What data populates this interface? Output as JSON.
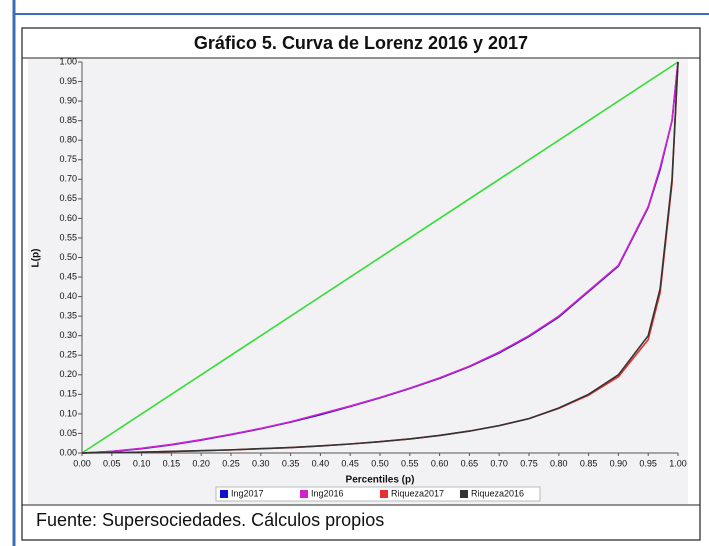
{
  "chart_data": {
    "type": "line",
    "title": "Gráfico 5. Curva de Lorenz 2016 y 2017",
    "xlabel": "Percentiles (p)",
    "ylabel": "L(p)",
    "source": "Fuente: Supersociedades. Cálculos propios",
    "x": [
      0,
      0.05,
      0.1,
      0.15,
      0.2,
      0.25,
      0.3,
      0.35,
      0.4,
      0.45,
      0.5,
      0.55,
      0.6,
      0.65,
      0.7,
      0.75,
      0.8,
      0.85,
      0.9,
      0.95,
      0.97,
      0.99,
      1
    ],
    "series": [
      {
        "name": "Ing2017",
        "color": "#1010d0",
        "values": [
          0,
          0.004,
          0.011,
          0.021,
          0.033,
          0.047,
          0.062,
          0.079,
          0.098,
          0.119,
          0.141,
          0.165,
          0.191,
          0.221,
          0.256,
          0.298,
          0.348,
          0.413,
          0.478,
          0.628,
          0.725,
          0.85,
          1
        ]
      },
      {
        "name": "Ing2016",
        "color": "#d020d0",
        "values": [
          0,
          0.004,
          0.012,
          0.022,
          0.034,
          0.048,
          0.063,
          0.08,
          0.1,
          0.12,
          0.142,
          0.166,
          0.192,
          0.222,
          0.258,
          0.3,
          0.35,
          0.415,
          0.48,
          0.63,
          0.73,
          0.85,
          1
        ]
      },
      {
        "name": "Riqueza2017",
        "color": "#e83030",
        "values": [
          0,
          0.001,
          0.002,
          0.004,
          0.006,
          0.008,
          0.011,
          0.014,
          0.018,
          0.023,
          0.029,
          0.036,
          0.045,
          0.056,
          0.07,
          0.088,
          0.114,
          0.148,
          0.195,
          0.29,
          0.41,
          0.69,
          1
        ]
      },
      {
        "name": "Riqueza2016",
        "color": "#333333",
        "values": [
          0,
          0.001,
          0.002,
          0.004,
          0.006,
          0.008,
          0.011,
          0.014,
          0.018,
          0.023,
          0.029,
          0.036,
          0.045,
          0.056,
          0.07,
          0.088,
          0.115,
          0.15,
          0.2,
          0.3,
          0.42,
          0.7,
          1
        ]
      }
    ],
    "diagonal": {
      "color": "#33dd33",
      "x": [
        0,
        1
      ],
      "values": [
        0,
        1
      ]
    },
    "xlim": [
      0,
      1
    ],
    "ylim": [
      0,
      1
    ],
    "xticks": [
      {
        "value": 0,
        "label": "0.00"
      },
      {
        "value": 0.05,
        "label": "0.05"
      },
      {
        "value": 0.1,
        "label": "0.10"
      },
      {
        "value": 0.15,
        "label": "0.15"
      },
      {
        "value": 0.2,
        "label": "0.20"
      },
      {
        "value": 0.25,
        "label": "0.25"
      },
      {
        "value": 0.3,
        "label": "0.30"
      },
      {
        "value": 0.35,
        "label": "0.35"
      },
      {
        "value": 0.4,
        "label": "0.40"
      },
      {
        "value": 0.45,
        "label": "0.45"
      },
      {
        "value": 0.5,
        "label": "0.50"
      },
      {
        "value": 0.55,
        "label": "0.55"
      },
      {
        "value": 0.6,
        "label": "0.60"
      },
      {
        "value": 0.65,
        "label": "0.65"
      },
      {
        "value": 0.7,
        "label": "0.70"
      },
      {
        "value": 0.75,
        "label": "0.75"
      },
      {
        "value": 0.8,
        "label": "0.80"
      },
      {
        "value": 0.85,
        "label": "0.85"
      },
      {
        "value": 0.9,
        "label": "0.90"
      },
      {
        "value": 0.95,
        "label": "0.95"
      },
      {
        "value": 1,
        "label": "1.00"
      }
    ],
    "yticks": [
      {
        "value": 0,
        "label": "0.00"
      },
      {
        "value": 0.05,
        "label": "0.05"
      },
      {
        "value": 0.1,
        "label": "0.10"
      },
      {
        "value": 0.15,
        "label": "0.15"
      },
      {
        "value": 0.2,
        "label": "0.20"
      },
      {
        "value": 0.25,
        "label": "0.25"
      },
      {
        "value": 0.3,
        "label": "0.30"
      },
      {
        "value": 0.35,
        "label": "0.35"
      },
      {
        "value": 0.4,
        "label": "0.40"
      },
      {
        "value": 0.45,
        "label": "0.45"
      },
      {
        "value": 0.5,
        "label": "0.50"
      },
      {
        "value": 0.55,
        "label": "0.55"
      },
      {
        "value": 0.6,
        "label": "0.60"
      },
      {
        "value": 0.65,
        "label": "0.65"
      },
      {
        "value": 0.7,
        "label": "0.70"
      },
      {
        "value": 0.75,
        "label": "0.75"
      },
      {
        "value": 0.8,
        "label": "0.80"
      },
      {
        "value": 0.85,
        "label": "0.85"
      },
      {
        "value": 0.9,
        "label": "0.90"
      },
      {
        "value": 0.95,
        "label": "0.95"
      },
      {
        "value": 1,
        "label": "1.00"
      }
    ],
    "legend": "bottom"
  }
}
